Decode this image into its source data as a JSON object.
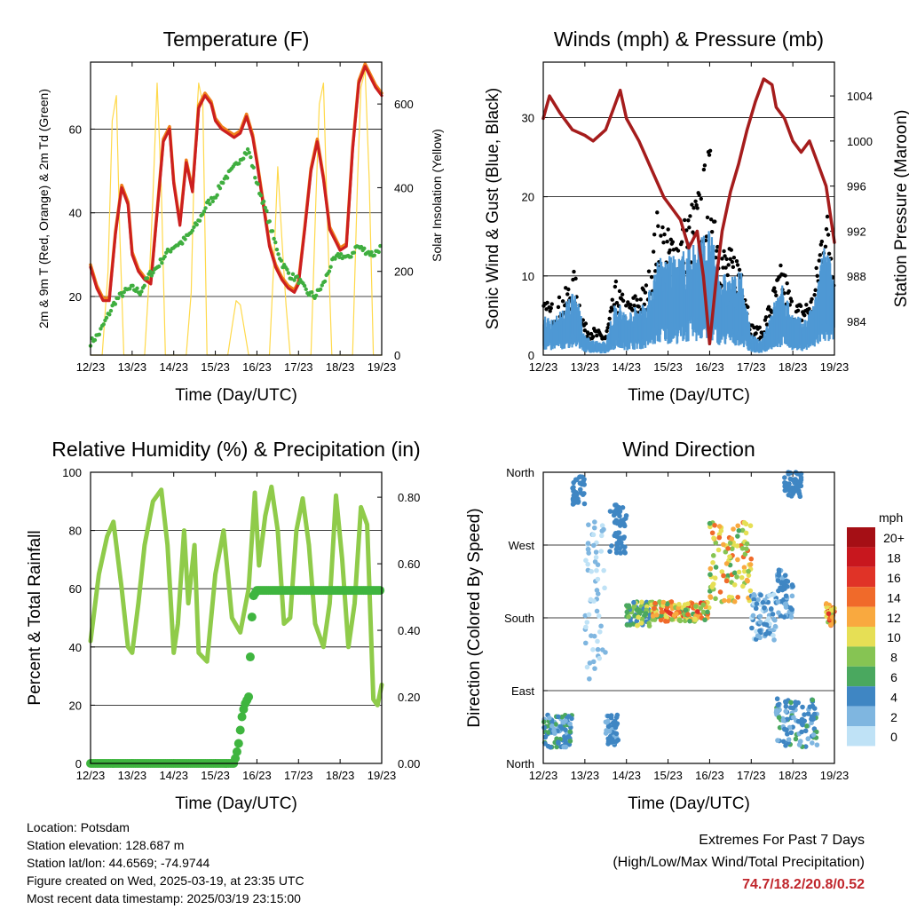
{
  "colors": {
    "red": "#cc1f1f",
    "orange": "#ef7f1a",
    "green": "#3fae3f",
    "yellow": "#ffd94a",
    "blue": "#4e98d4",
    "black": "#000000",
    "maroon": "#a51c1c",
    "rh": "#8fcb4a",
    "precip": "#3fb53f"
  },
  "x_ticks": [
    "12/23",
    "13/23",
    "14/23",
    "15/23",
    "16/23",
    "17/23",
    "18/23",
    "19/23"
  ],
  "xlabel": "Time (Day/UTC)",
  "chart_data": [
    {
      "id": "temperature",
      "type": "line",
      "title": "Temperature (F)",
      "xlabel": "Time (Day/UTC)",
      "ylabel": "2m & 9m T (Red, Orange) & 2m Td (Green)",
      "y2label": "Solar Insolation (Yellow)",
      "xlim": [
        0,
        7
      ],
      "ylim": [
        6,
        76
      ],
      "yticks": [
        20,
        40,
        60
      ],
      "y2lim": [
        0,
        700
      ],
      "y2ticks": [
        0,
        200,
        400,
        600
      ],
      "series": [
        {
          "key": "t2m",
          "x": [
            0,
            0.15,
            0.3,
            0.45,
            0.6,
            0.75,
            0.9,
            1.0,
            1.15,
            1.3,
            1.45,
            1.6,
            1.75,
            1.9,
            2.0,
            2.15,
            2.3,
            2.45,
            2.6,
            2.75,
            2.9,
            3.0,
            3.15,
            3.3,
            3.45,
            3.6,
            3.75,
            3.9,
            4.0,
            4.15,
            4.3,
            4.45,
            4.6,
            4.75,
            4.9,
            5.0,
            5.15,
            5.3,
            5.45,
            5.6,
            5.75,
            5.9,
            6.0,
            6.15,
            6.3,
            6.45,
            6.6,
            6.75,
            6.85,
            7.0
          ],
          "y": [
            27,
            22,
            19,
            19,
            35,
            46,
            42,
            30,
            26,
            24,
            23,
            40,
            57,
            60,
            47,
            37,
            52,
            45,
            65,
            68,
            66,
            62,
            60,
            59,
            58,
            59,
            63,
            58,
            52,
            42,
            32,
            27,
            24,
            22,
            21,
            23,
            36,
            50,
            57,
            48,
            36,
            33,
            31,
            32,
            55,
            71,
            75,
            72,
            70,
            68
          ]
        },
        {
          "key": "td2m",
          "x": [
            0,
            0.2,
            0.4,
            0.6,
            0.8,
            1.0,
            1.2,
            1.4,
            1.6,
            1.8,
            2.0,
            2.2,
            2.4,
            2.6,
            2.8,
            3.0,
            3.2,
            3.4,
            3.6,
            3.8,
            4.0,
            4.2,
            4.4,
            4.6,
            4.8,
            5.0,
            5.2,
            5.4,
            5.6,
            5.8,
            6.0,
            6.2,
            6.4,
            6.6,
            6.8,
            7.0
          ],
          "y": [
            9,
            11,
            15,
            19,
            21,
            22,
            21,
            25,
            27,
            30,
            32,
            33,
            35,
            38,
            42,
            44,
            48,
            50,
            53,
            55,
            47,
            41,
            34,
            28,
            25,
            24,
            21,
            20,
            23,
            28,
            30,
            29,
            32,
            31,
            30,
            32
          ]
        },
        {
          "key": "solar",
          "x": [
            0,
            0.28,
            0.42,
            0.52,
            0.62,
            0.7,
            0.8,
            1.0,
            1.3,
            1.42,
            1.5,
            1.6,
            1.7,
            1.8,
            2.0,
            2.3,
            2.42,
            2.5,
            2.6,
            2.7,
            2.8,
            3.0,
            3.3,
            3.42,
            3.5,
            3.6,
            3.7,
            3.8,
            4.0,
            4.3,
            4.42,
            4.5,
            4.6,
            4.7,
            4.8,
            5.0,
            5.3,
            5.42,
            5.5,
            5.6,
            5.7,
            5.8,
            6.0,
            6.3,
            6.42,
            6.5,
            6.6,
            6.7,
            6.8,
            7.0
          ],
          "y": [
            0,
            0,
            200,
            560,
            620,
            300,
            0,
            0,
            0,
            200,
            380,
            650,
            400,
            0,
            0,
            0,
            150,
            480,
            650,
            600,
            0,
            0,
            0,
            80,
            130,
            120,
            60,
            0,
            0,
            0,
            250,
            450,
            280,
            120,
            0,
            0,
            0,
            380,
            600,
            650,
            300,
            0,
            0,
            0,
            420,
            640,
            680,
            420,
            0,
            0
          ]
        }
      ]
    },
    {
      "id": "winds",
      "type": "line",
      "title": "Winds (mph) & Pressure (mb)",
      "xlabel": "Time (Day/UTC)",
      "ylabel": "Sonic Wind & Gust (Blue, Black)",
      "y2label": "Station Pressure (Maroon)",
      "xlim": [
        0,
        7
      ],
      "ylim": [
        0,
        37
      ],
      "yticks": [
        0,
        10,
        20,
        30
      ],
      "y2lim": [
        981,
        1007
      ],
      "y2ticks": [
        984,
        988,
        992,
        996,
        1000,
        1004
      ],
      "series": [
        {
          "key": "wind",
          "x": [
            0,
            0.25,
            0.5,
            0.75,
            1.0,
            1.25,
            1.5,
            1.75,
            2.0,
            2.25,
            2.5,
            2.75,
            3.0,
            3.25,
            3.5,
            3.75,
            4.0,
            4.25,
            4.5,
            4.75,
            5.0,
            5.25,
            5.5,
            5.75,
            6.0,
            6.25,
            6.5,
            6.75,
            7.0
          ],
          "y": [
            3,
            2.5,
            3.5,
            5,
            1.5,
            1,
            1,
            4,
            3,
            3.5,
            4,
            7,
            7,
            7,
            8,
            8.5,
            9,
            6,
            5.5,
            6,
            1.5,
            1,
            3.5,
            5,
            3,
            2.5,
            3.5,
            8,
            6
          ]
        },
        {
          "key": "gust",
          "x": [
            0,
            0.25,
            0.5,
            0.75,
            1.0,
            1.25,
            1.5,
            1.75,
            2.0,
            2.25,
            2.5,
            2.75,
            3.0,
            3.25,
            3.5,
            3.75,
            4.0,
            4.25,
            4.5,
            4.75,
            5.0,
            5.25,
            5.5,
            5.75,
            6.0,
            6.25,
            6.5,
            6.75,
            7.0
          ],
          "y": [
            5,
            5,
            6,
            8,
            3,
            2.5,
            2,
            7,
            5,
            6,
            7,
            14,
            12,
            12,
            14,
            16,
            20,
            11,
            10,
            10,
            3,
            2.5,
            6,
            9,
            5,
            5,
            6,
            15,
            11
          ]
        },
        {
          "key": "pressure",
          "x": [
            0,
            0.15,
            0.4,
            0.7,
            1.0,
            1.2,
            1.5,
            1.7,
            1.85,
            2.0,
            2.3,
            2.6,
            2.9,
            3.1,
            3.3,
            3.5,
            3.7,
            3.85,
            4.0,
            4.15,
            4.3,
            4.5,
            4.7,
            4.9,
            5.1,
            5.3,
            5.5,
            5.6,
            5.8,
            6.0,
            6.2,
            6.4,
            6.6,
            6.8,
            7.0
          ],
          "y": [
            1002,
            1004,
            1002.5,
            1001,
            1000.5,
            1000,
            1001,
            1003,
            1004.5,
            1002,
            1000,
            997.5,
            995,
            994,
            993,
            990.5,
            992,
            988,
            982,
            987.5,
            992,
            995.5,
            998,
            1001,
            1003.5,
            1005.5,
            1005,
            1003,
            1002,
            1000,
            999,
            1000,
            998,
            996,
            991
          ]
        }
      ]
    },
    {
      "id": "humidity",
      "type": "line",
      "title": "Relative Humidity (%) & Precipitation (in)",
      "xlabel": "Time (Day/UTC)",
      "ylabel": "Percent & Total Rainfall",
      "xlim": [
        0,
        7
      ],
      "ylim": [
        0,
        100
      ],
      "yticks": [
        0,
        20,
        40,
        60,
        80,
        100
      ],
      "y2lim": [
        0,
        0.875
      ],
      "y2ticks": [
        "0.00",
        "0.20",
        "0.40",
        "0.60",
        "0.80"
      ],
      "series": [
        {
          "key": "rh",
          "x": [
            0,
            0.2,
            0.4,
            0.55,
            0.75,
            0.9,
            1.0,
            1.15,
            1.3,
            1.5,
            1.7,
            1.85,
            2.0,
            2.1,
            2.25,
            2.35,
            2.5,
            2.6,
            2.8,
            3.0,
            3.2,
            3.4,
            3.6,
            3.8,
            3.95,
            4.05,
            4.2,
            4.35,
            4.5,
            4.65,
            4.8,
            4.95,
            5.1,
            5.25,
            5.4,
            5.6,
            5.75,
            5.9,
            6.05,
            6.2,
            6.35,
            6.5,
            6.65,
            6.8,
            6.9,
            7.0
          ],
          "y": [
            42,
            65,
            78,
            83,
            60,
            40,
            38,
            55,
            75,
            90,
            94,
            75,
            38,
            48,
            80,
            55,
            75,
            38,
            35,
            65,
            80,
            50,
            45,
            60,
            93,
            68,
            85,
            95,
            80,
            48,
            50,
            80,
            91,
            75,
            48,
            40,
            55,
            92,
            70,
            40,
            55,
            88,
            82,
            22,
            20,
            27
          ]
        },
        {
          "key": "precip",
          "x": [
            0,
            0.5,
            1.0,
            1.5,
            2.0,
            2.5,
            3.0,
            3.3,
            3.45,
            3.55,
            3.6,
            3.65,
            3.72,
            3.8,
            3.85,
            3.9,
            4.0,
            4.5,
            5.0,
            5.5,
            6.0,
            6.5,
            7.0
          ],
          "y": [
            0,
            0,
            0,
            0,
            0,
            0,
            0,
            0,
            0,
            0.05,
            0.1,
            0.15,
            0.18,
            0.2,
            0.35,
            0.5,
            0.52,
            0.52,
            0.52,
            0.52,
            0.52,
            0.52,
            0.52
          ]
        }
      ]
    },
    {
      "id": "direction",
      "type": "scatter",
      "title": "Wind Direction",
      "xlabel": "Time (Day/UTC)",
      "ylabel": "Direction (Colored By Speed)",
      "xlim": [
        0,
        7
      ],
      "ylim": [
        0,
        360
      ],
      "ytick_labels": [
        {
          "v": 0,
          "label": "North"
        },
        {
          "v": 90,
          "label": "East"
        },
        {
          "v": 180,
          "label": "South"
        },
        {
          "v": 270,
          "label": "West"
        },
        {
          "v": 360,
          "label": "North"
        }
      ],
      "legend": {
        "title": "mph",
        "labels": [
          "20+",
          "18",
          "16",
          "14",
          "12",
          "10",
          "8",
          "6",
          "4",
          "2",
          "0"
        ],
        "colors": [
          "#a50f15",
          "#c8171e",
          "#e03327",
          "#f06a2a",
          "#f9a93f",
          "#e6df55",
          "#86c453",
          "#4aa85f",
          "#3f86c3",
          "#7fb6e0",
          "#bfe2f6"
        ]
      },
      "clusters": [
        {
          "x": [
            0.0,
            0.7
          ],
          "d": [
            20,
            60
          ],
          "s": [
            2,
            6
          ]
        },
        {
          "x": [
            0.7,
            1.0
          ],
          "d": [
            320,
            355
          ],
          "s": [
            3,
            5
          ]
        },
        {
          "x": [
            1.0,
            1.5
          ],
          "d": [
            100,
            300
          ],
          "s": [
            0,
            3
          ]
        },
        {
          "x": [
            1.5,
            1.8
          ],
          "d": [
            20,
            60
          ],
          "s": [
            2,
            5
          ]
        },
        {
          "x": [
            1.6,
            2.0
          ],
          "d": [
            260,
            320
          ],
          "s": [
            3,
            5
          ]
        },
        {
          "x": [
            2.0,
            2.6
          ],
          "d": [
            170,
            200
          ],
          "s": [
            3,
            10
          ]
        },
        {
          "x": [
            2.6,
            4.0
          ],
          "d": [
            175,
            200
          ],
          "s": [
            6,
            16
          ]
        },
        {
          "x": [
            4.0,
            5.0
          ],
          "d": [
            200,
            300
          ],
          "s": [
            6,
            14
          ]
        },
        {
          "x": [
            5.0,
            5.6
          ],
          "d": [
            150,
            210
          ],
          "s": [
            0,
            5
          ]
        },
        {
          "x": [
            5.6,
            6.0
          ],
          "d": [
            180,
            240
          ],
          "s": [
            2,
            5
          ]
        },
        {
          "x": [
            5.8,
            6.2
          ],
          "d": [
            330,
            360
          ],
          "s": [
            3,
            5
          ]
        },
        {
          "x": [
            5.6,
            6.6
          ],
          "d": [
            20,
            80
          ],
          "s": [
            2,
            6
          ]
        },
        {
          "x": [
            6.8,
            7.0
          ],
          "d": [
            170,
            200
          ],
          "s": [
            8,
            16
          ]
        }
      ]
    }
  ],
  "info": {
    "location": "Location: Potsdam",
    "elevation": "Station elevation: 128.687 m",
    "latlon": "Station lat/lon: 44.6569; -74.9744",
    "created": "Figure created on Wed, 2025-03-19, at 23:35 UTC",
    "timestamp": "Most recent data timestamp: 2025/03/19 23:15:00"
  },
  "extremes": {
    "heading": "Extremes For Past 7 Days",
    "subheading": "(High/Low/Max Wind/Total Precipitation)",
    "values": "74.7/18.2/20.8/0.52"
  }
}
